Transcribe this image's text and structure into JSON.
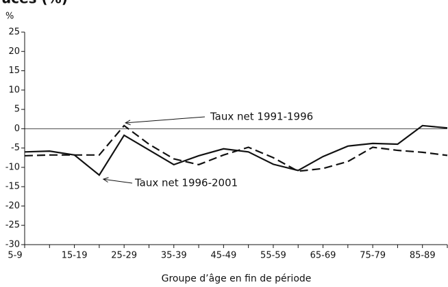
{
  "chart_data": {
    "type": "line",
    "title": "uces (%)",
    "y_label": "%",
    "x_label": "Groupe d’âge en fin de période",
    "categories": [
      "5-9",
      null,
      "15-19",
      null,
      "25-29",
      null,
      "35-39",
      null,
      "45-49",
      null,
      "55-59",
      null,
      "65-69",
      null,
      "75-79",
      null,
      "85-89",
      null
    ],
    "series": [
      {
        "name": "Taux net 1991-1996",
        "color": "#111111",
        "dash": true,
        "values": [
          -7,
          -6.8,
          -6.8,
          -6.8,
          0.8,
          -4,
          -7.8,
          -9.3,
          -6.8,
          -4.8,
          -7.5,
          -11,
          -10.3,
          -8.5,
          -4.8,
          -5.6,
          -6.1,
          -6.9
        ]
      },
      {
        "name": "Taux net 1996-2001",
        "color": "#111111",
        "dash": false,
        "values": [
          -6,
          -5.8,
          -6.8,
          -12,
          -1.7,
          -5.5,
          -9.3,
          -7,
          -5.2,
          -6,
          -9.2,
          -10.8,
          -7.2,
          -4.5,
          -3.8,
          -4,
          0.8,
          0.2
        ]
      }
    ],
    "ylim": [
      -30,
      25
    ],
    "yticks": [
      -30,
      -25,
      -20,
      -15,
      -10,
      -5,
      0,
      5,
      10,
      15,
      20,
      25
    ]
  }
}
